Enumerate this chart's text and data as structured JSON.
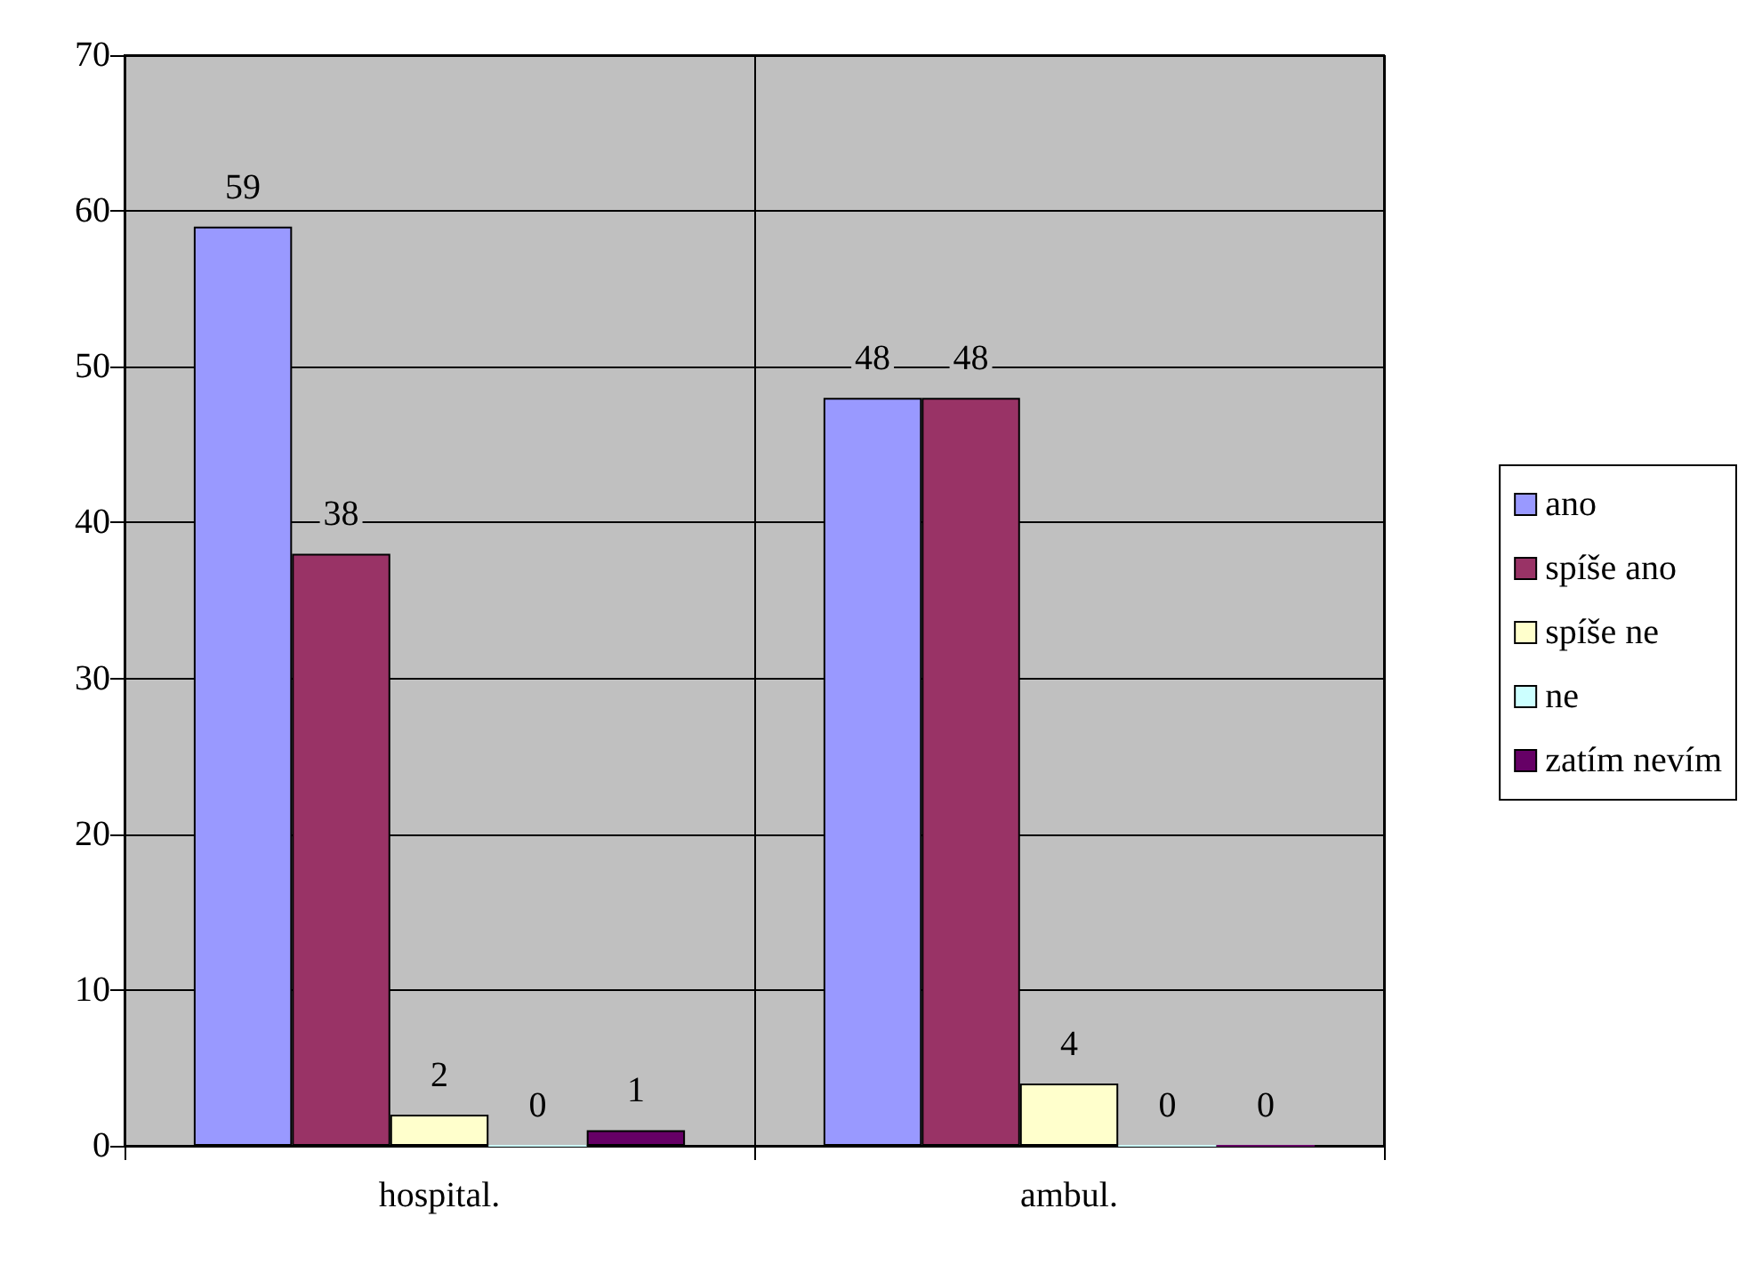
{
  "chart_data": {
    "type": "bar",
    "categories": [
      "hospital.",
      "ambul."
    ],
    "series": [
      {
        "name": "ano",
        "color": "#9999ff",
        "values": [
          59,
          48
        ]
      },
      {
        "name": "spíše ano",
        "color": "#993366",
        "values": [
          38,
          48
        ]
      },
      {
        "name": "spíše ne",
        "color": "#ffffcc",
        "values": [
          2,
          4
        ]
      },
      {
        "name": "ne",
        "color": "#ccffff",
        "values": [
          0,
          0
        ]
      },
      {
        "name": "zatím nevím",
        "color": "#660066",
        "values": [
          1,
          0
        ]
      }
    ],
    "ylim": [
      0,
      70
    ],
    "yticks": [
      0,
      10,
      20,
      30,
      40,
      50,
      60,
      70
    ],
    "grid": true,
    "legend": "right",
    "data_labels": true
  }
}
